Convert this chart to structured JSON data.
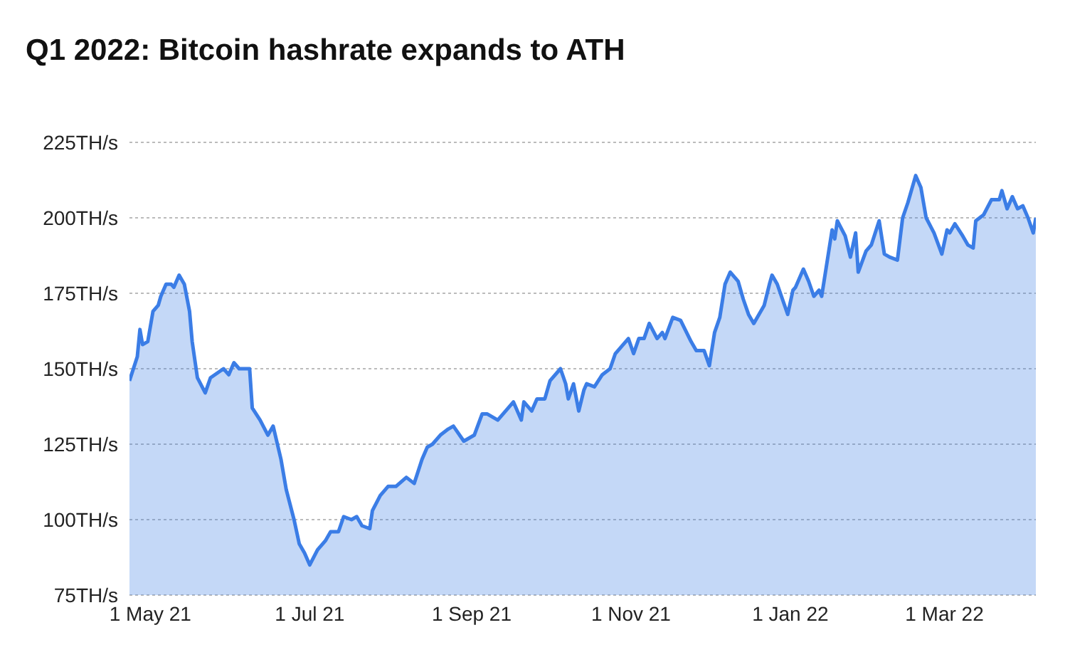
{
  "chart_data": {
    "type": "area",
    "title": "Q1 2022: Bitcoin hashrate expands to ATH",
    "x": [
      "2021-04-23",
      "2021-04-26",
      "2021-04-27",
      "2021-04-28",
      "2021-04-30",
      "2021-05-02",
      "2021-05-04",
      "2021-05-05",
      "2021-05-07",
      "2021-05-09",
      "2021-05-10",
      "2021-05-12",
      "2021-05-14",
      "2021-05-16",
      "2021-05-17",
      "2021-05-19",
      "2021-05-22",
      "2021-05-24",
      "2021-05-29",
      "2021-05-31",
      "2021-06-02",
      "2021-06-04",
      "2021-06-08",
      "2021-06-09",
      "2021-06-12",
      "2021-06-15",
      "2021-06-17",
      "2021-06-20",
      "2021-06-22",
      "2021-06-25",
      "2021-06-27",
      "2021-06-29",
      "2021-07-01",
      "2021-07-04",
      "2021-07-07",
      "2021-07-09",
      "2021-07-12",
      "2021-07-14",
      "2021-07-17",
      "2021-07-19",
      "2021-07-21",
      "2021-07-24",
      "2021-07-25",
      "2021-07-28",
      "2021-07-31",
      "2021-08-03",
      "2021-08-07",
      "2021-08-10",
      "2021-08-13",
      "2021-08-15",
      "2021-08-17",
      "2021-08-20",
      "2021-08-23",
      "2021-08-25",
      "2021-08-29",
      "2021-09-02",
      "2021-09-05",
      "2021-09-07",
      "2021-09-11",
      "2021-09-13",
      "2021-09-17",
      "2021-09-20",
      "2021-09-21",
      "2021-09-24",
      "2021-09-26",
      "2021-09-29",
      "2021-10-01",
      "2021-10-05",
      "2021-10-07",
      "2021-10-08",
      "2021-10-10",
      "2021-10-12",
      "2021-10-14",
      "2021-10-15",
      "2021-10-18",
      "2021-10-21",
      "2021-10-24",
      "2021-10-26",
      "2021-10-29",
      "2021-10-31",
      "2021-11-02",
      "2021-11-04",
      "2021-11-06",
      "2021-11-08",
      "2021-11-11",
      "2021-11-13",
      "2021-11-14",
      "2021-11-17",
      "2021-11-20",
      "2021-11-24",
      "2021-11-26",
      "2021-11-29",
      "2021-12-01",
      "2021-12-03",
      "2021-12-05",
      "2021-12-07",
      "2021-12-09",
      "2021-12-12",
      "2021-12-13",
      "2021-12-14",
      "2021-12-16",
      "2021-12-18",
      "2021-12-20",
      "2021-12-22",
      "2021-12-24",
      "2021-12-25",
      "2021-12-27",
      "2021-12-29",
      "2021-12-31",
      "2022-01-02",
      "2022-01-03",
      "2022-01-06",
      "2022-01-08",
      "2022-01-10",
      "2022-01-12",
      "2022-01-13",
      "2022-01-15",
      "2022-01-17",
      "2022-01-18",
      "2022-01-19",
      "2022-01-22",
      "2022-01-24",
      "2022-01-26",
      "2022-01-27",
      "2022-01-30",
      "2022-02-01",
      "2022-02-04",
      "2022-02-06",
      "2022-02-08",
      "2022-02-11",
      "2022-02-13",
      "2022-02-15",
      "2022-02-18",
      "2022-02-20",
      "2022-02-22",
      "2022-02-25",
      "2022-02-28",
      "2022-03-02",
      "2022-03-03",
      "2022-03-05",
      "2022-03-08",
      "2022-03-10",
      "2022-03-12",
      "2022-03-13",
      "2022-03-16",
      "2022-03-19",
      "2022-03-22",
      "2022-03-23",
      "2022-03-25",
      "2022-03-27",
      "2022-03-29",
      "2022-03-31",
      "2022-04-02",
      "2022-04-04",
      "2022-04-05"
    ],
    "series": [
      {
        "color": "#3b7de6",
        "values": [
          146,
          154,
          163,
          158,
          159,
          169,
          171,
          174,
          178,
          178,
          177,
          181,
          178,
          169,
          159,
          147,
          142,
          147,
          150,
          148,
          152,
          150,
          150,
          137,
          133,
          128,
          131,
          120,
          110,
          100,
          92,
          89,
          85,
          90,
          93,
          96,
          96,
          101,
          100,
          101,
          98,
          97,
          103,
          108,
          111,
          111,
          114,
          112,
          120,
          124,
          125,
          128,
          130,
          131,
          126,
          128,
          135,
          135,
          133,
          135,
          139,
          133,
          139,
          136,
          140,
          140,
          146,
          150,
          145,
          140,
          145,
          136,
          143,
          145,
          144,
          148,
          150,
          155,
          158,
          160,
          155,
          160,
          160,
          165,
          160,
          162,
          160,
          167,
          166,
          159,
          156,
          156,
          151,
          162,
          167,
          178,
          182,
          179,
          176,
          173,
          168,
          165,
          168,
          171,
          178,
          181,
          178,
          173,
          168,
          176,
          177,
          183,
          179,
          174,
          176,
          174,
          185,
          196,
          193,
          199,
          194,
          187,
          195,
          182,
          189,
          191,
          199,
          188,
          187,
          186,
          200,
          205,
          214,
          210,
          200,
          195,
          188,
          196,
          195,
          198,
          194,
          191,
          190,
          199,
          201,
          206,
          206,
          209,
          203,
          207,
          203,
          204,
          200,
          195,
          200
        ]
      }
    ],
    "xlim": [
      "2021-04-23",
      "2022-04-05"
    ],
    "xticks": [
      {
        "value": "2021-05-01",
        "label": "1 May 21"
      },
      {
        "value": "2021-07-01",
        "label": "1 Jul 21"
      },
      {
        "value": "2021-09-01",
        "label": "1 Sep 21"
      },
      {
        "value": "2021-11-01",
        "label": "1 Nov 21"
      },
      {
        "value": "2022-01-01",
        "label": "1 Jan 22"
      },
      {
        "value": "2022-03-01",
        "label": "1 Mar 22"
      }
    ],
    "ylim": [
      75,
      225
    ],
    "yticks": [
      {
        "value": 75,
        "label": "75TH/s"
      },
      {
        "value": 100,
        "label": "100TH/s"
      },
      {
        "value": 125,
        "label": "125TH/s"
      },
      {
        "value": 150,
        "label": "150TH/s"
      },
      {
        "value": 175,
        "label": "175TH/s"
      },
      {
        "value": 200,
        "label": "200TH/s"
      },
      {
        "value": 225,
        "label": "225TH/s"
      }
    ],
    "grid": "y"
  }
}
